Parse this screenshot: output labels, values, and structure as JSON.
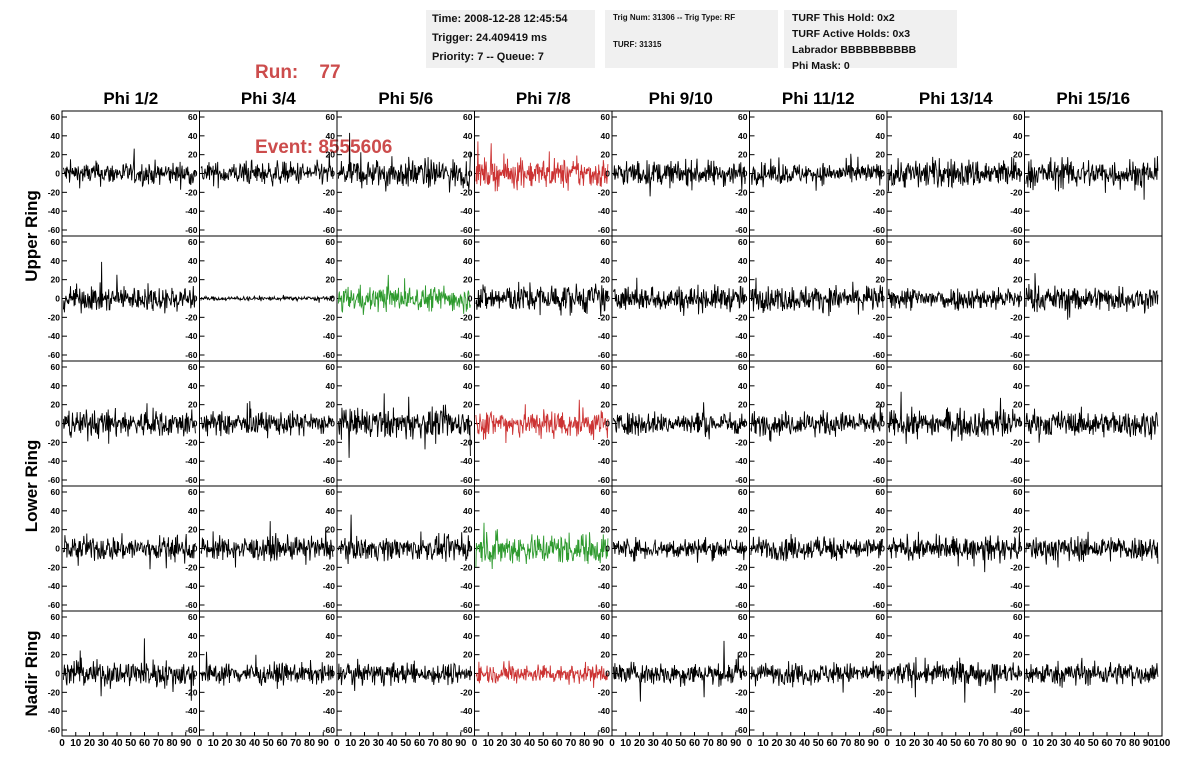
{
  "header": {
    "run_label": "Run:",
    "run_value": "77",
    "event_label": "Event:",
    "event_value": "8555606"
  },
  "info_time": {
    "time": "Time: 2008-12-28 12:45:54",
    "trigger": "Trigger: 24.409419 ms",
    "priority": "Priority: 7 -- Queue: 7"
  },
  "info_trig": {
    "trig": "Trig Num: 31306 -- Trig Type: RF",
    "turf": "TURF: 31315"
  },
  "info_turf": {
    "this_hold": "TURF This Hold: 0x2",
    "active_holds": "TURF Active Holds: 0x3",
    "labrador": "Labrador BBBBBBBBBB",
    "phi_mask": "Phi Mask: 0"
  },
  "colors": {
    "normal": "#000000",
    "triggered": "#cc3333",
    "held": "#2e9a2e"
  },
  "chart_data": {
    "type": "line",
    "columns": [
      "Phi 1/2",
      "Phi 3/4",
      "Phi 5/6",
      "Phi 7/8",
      "Phi 9/10",
      "Phi 11/12",
      "Phi 13/14",
      "Phi 15/16"
    ],
    "row_groups": [
      {
        "label": "Upper Ring",
        "rows": [
          0,
          1
        ]
      },
      {
        "label": "Lower Ring",
        "rows": [
          2,
          3
        ]
      },
      {
        "label": "Nadir Ring",
        "rows": [
          4
        ]
      }
    ],
    "xlim": [
      0,
      100
    ],
    "ylim": [
      -60,
      60
    ],
    "y_ticks": [
      -60,
      -40,
      -20,
      0,
      20,
      40,
      60
    ],
    "x_ticks": [
      0,
      10,
      20,
      30,
      40,
      50,
      60,
      70,
      80,
      90,
      100
    ],
    "panel_color_state": [
      [
        "normal",
        "normal",
        "normal",
        "triggered",
        "normal",
        "normal",
        "normal",
        "normal"
      ],
      [
        "normal",
        "normal",
        "held",
        "normal",
        "normal",
        "normal",
        "normal",
        "normal"
      ],
      [
        "normal",
        "normal",
        "normal",
        "triggered",
        "normal",
        "normal",
        "normal",
        "normal"
      ],
      [
        "normal",
        "normal",
        "normal",
        "held",
        "normal",
        "normal",
        "normal",
        "normal"
      ],
      [
        "normal",
        "normal",
        "normal",
        "triggered",
        "normal",
        "normal",
        "normal",
        "normal"
      ]
    ],
    "waveform_rms": [
      [
        11,
        11,
        14,
        14,
        12,
        10,
        14,
        14
      ],
      [
        12,
        2,
        12,
        14,
        12,
        12,
        11,
        12
      ],
      [
        13,
        11,
        14,
        14,
        11,
        11,
        13,
        12
      ],
      [
        12,
        11,
        11,
        15,
        10,
        11,
        11,
        12
      ],
      [
        13,
        10,
        10,
        9,
        11,
        10,
        11,
        11
      ]
    ],
    "samples_per_trace": 260
  }
}
